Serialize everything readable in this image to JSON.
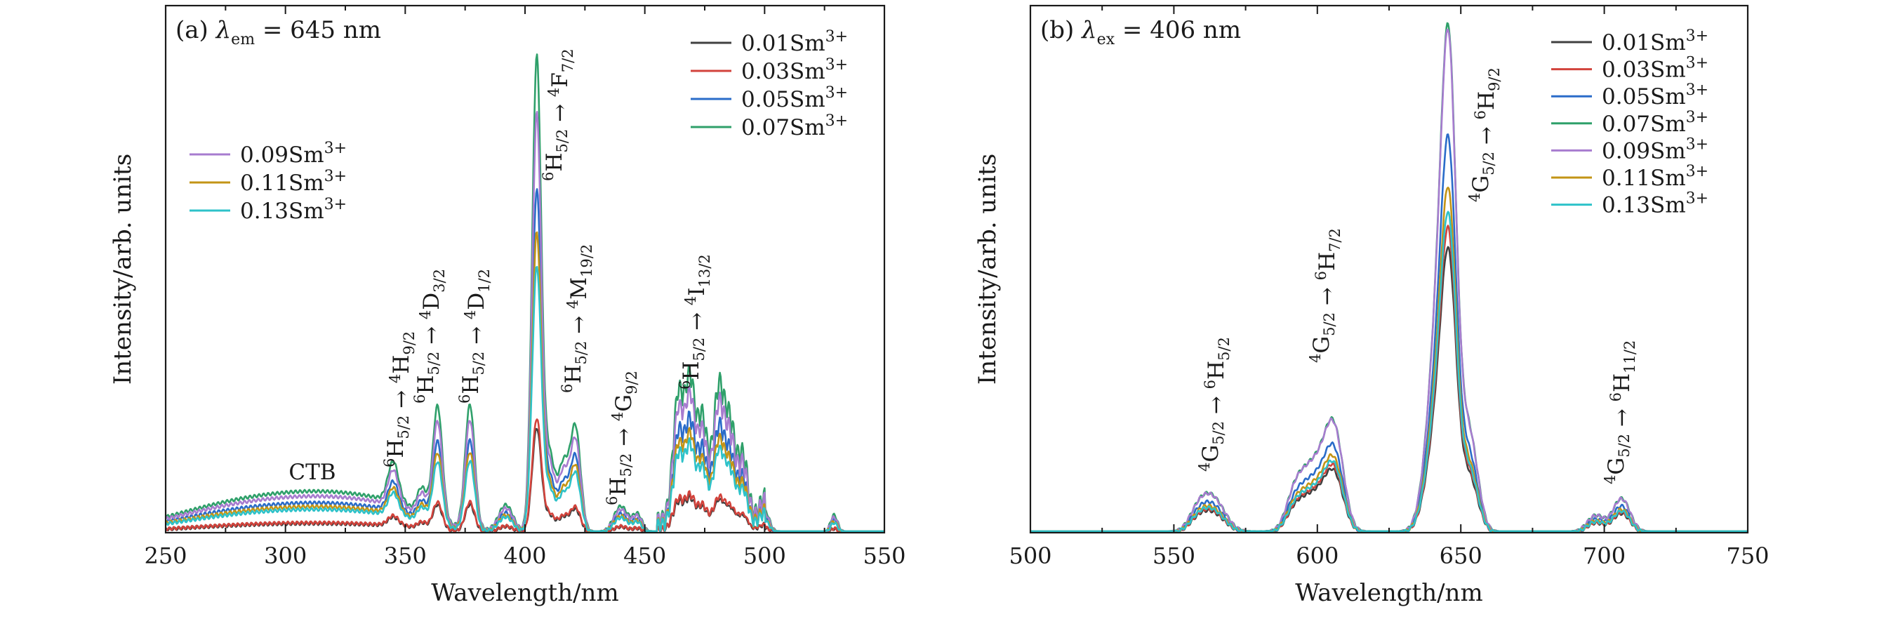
{
  "chart_data": [
    {
      "type": "line",
      "panel_label": "(a)",
      "title": "λem = 645 nm",
      "title_symbol": "λ",
      "title_sub": "em",
      "title_value": "= 645 nm",
      "xlabel": "Wavelength/nm",
      "ylabel": "Intensity/arb. units",
      "xlim": [
        250,
        550
      ],
      "ylim": [
        0,
        1.05
      ],
      "xticks": [
        250,
        300,
        350,
        400,
        450,
        500,
        550
      ],
      "legend_groups": [
        {
          "position": "top-right",
          "entries": [
            "0.01Sm3+",
            "0.03Sm3+",
            "0.05Sm3+",
            "0.07Sm3+"
          ]
        },
        {
          "position": "upper-left",
          "entries": [
            "0.09Sm3+",
            "0.11Sm3+",
            "0.13Sm3+"
          ]
        }
      ],
      "series": [
        {
          "name": "0.01Sm3+",
          "color": "#404040",
          "scale": 0.22
        },
        {
          "name": "0.03Sm3+",
          "color": "#d2433c",
          "scale": 0.24
        },
        {
          "name": "0.05Sm3+",
          "color": "#2a6cc9",
          "scale": 0.72
        },
        {
          "name": "0.07Sm3+",
          "color": "#2fa06a",
          "scale": 1.0
        },
        {
          "name": "0.09Sm3+",
          "color": "#a77ccf",
          "scale": 0.88
        },
        {
          "name": "0.11Sm3+",
          "color": "#c39416",
          "scale": 0.63
        },
        {
          "name": "0.13Sm3+",
          "color": "#2ec2c9",
          "scale": 0.56
        }
      ],
      "annotations": [
        {
          "text": "CTB",
          "x": 320
        },
        {
          "text": "6H5/2 → 4H9/2",
          "x": 344
        },
        {
          "text": "6H5/2 → 4D3/2",
          "x": 362
        },
        {
          "text": "6H5/2 → 4D1/2",
          "x": 377
        },
        {
          "text": "6H5/2 → 4F7/2",
          "x": 405
        },
        {
          "text": "6H5/2 → 4M19/2",
          "x": 420
        },
        {
          "text": "6H5/2 → 4G9/2",
          "x": 440
        },
        {
          "text": "6H5/2 → 4I13/2",
          "x": 468
        }
      ]
    },
    {
      "type": "line",
      "panel_label": "(b)",
      "title": "λex = 406 nm",
      "title_symbol": "λ",
      "title_sub": "ex",
      "title_value": "= 406 nm",
      "xlabel": "Wavelength/nm",
      "ylabel": "Intensity/arb. units",
      "xlim": [
        500,
        750
      ],
      "ylim": [
        0,
        1.05
      ],
      "xticks": [
        500,
        550,
        600,
        650,
        700,
        750
      ],
      "legend_groups": [
        {
          "position": "top-right",
          "entries": [
            "0.01Sm3+",
            "0.03Sm3+",
            "0.05Sm3+",
            "0.07Sm3+",
            "0.09Sm3+",
            "0.11Sm3+",
            "0.13Sm3+"
          ]
        }
      ],
      "series": [
        {
          "name": "0.01Sm3+",
          "color": "#404040",
          "scale": 0.56
        },
        {
          "name": "0.03Sm3+",
          "color": "#d2433c",
          "scale": 0.6
        },
        {
          "name": "0.05Sm3+",
          "color": "#2a6cc9",
          "scale": 0.78
        },
        {
          "name": "0.07Sm3+",
          "color": "#2fa06a",
          "scale": 1.0
        },
        {
          "name": "0.09Sm3+",
          "color": "#a77ccf",
          "scale": 0.99
        },
        {
          "name": "0.11Sm3+",
          "color": "#c39416",
          "scale": 0.68
        },
        {
          "name": "0.13Sm3+",
          "color": "#2ec2c9",
          "scale": 0.63
        }
      ],
      "annotations": [
        {
          "text": "4G5/2 → 6H5/2",
          "x": 563
        },
        {
          "text": "4G5/2 → 6H7/2",
          "x": 600
        },
        {
          "text": "4G5/2 → 6H9/2",
          "x": 655
        },
        {
          "text": "4G5/2 → 6H11/2",
          "x": 705
        }
      ]
    }
  ]
}
